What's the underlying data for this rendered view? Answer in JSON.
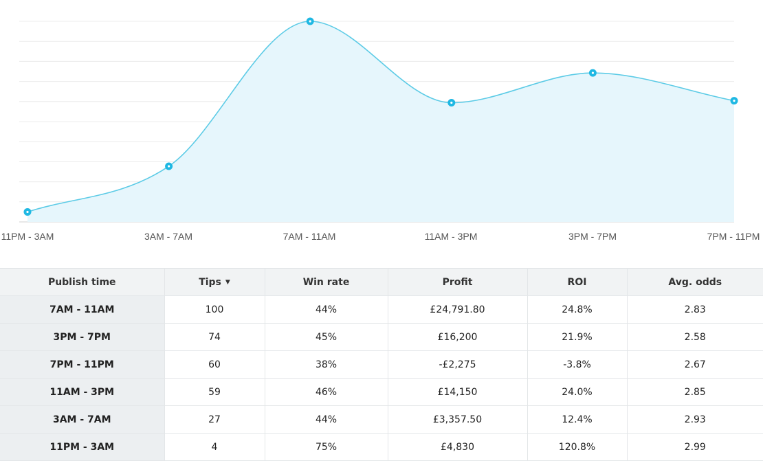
{
  "chart_data": {
    "type": "area",
    "categories": [
      "11PM - 3AM",
      "3AM - 7AM",
      "7AM - 11AM",
      "11AM - 3PM",
      "3PM - 7PM",
      "7PM - 11PM"
    ],
    "values": [
      4,
      27,
      100,
      59,
      74,
      60
    ],
    "ylim": [
      0,
      100
    ],
    "grid": true,
    "title": "",
    "xlabel": "",
    "ylabel": "",
    "colors": {
      "line": "#5ccbe6",
      "fill": "#e6f6fc",
      "point": "#1fb8e3"
    }
  },
  "table": {
    "columns": [
      {
        "key": "publish_time",
        "label": "Publish time"
      },
      {
        "key": "tips",
        "label": "Tips",
        "sort_icon": "sort-desc-icon",
        "sort_glyph": "▼"
      },
      {
        "key": "win_rate",
        "label": "Win rate"
      },
      {
        "key": "profit",
        "label": "Profit"
      },
      {
        "key": "roi",
        "label": "ROI"
      },
      {
        "key": "avg_odds",
        "label": "Avg. odds"
      }
    ],
    "rows": [
      {
        "publish_time": "7AM - 11AM",
        "tips": "100",
        "win_rate": "44%",
        "profit": "£24,791.80",
        "roi": "24.8%",
        "avg_odds": "2.83"
      },
      {
        "publish_time": "3PM - 7PM",
        "tips": "74",
        "win_rate": "45%",
        "profit": "£16,200",
        "roi": "21.9%",
        "avg_odds": "2.58"
      },
      {
        "publish_time": "7PM - 11PM",
        "tips": "60",
        "win_rate": "38%",
        "profit": "-£2,275",
        "roi": "-3.8%",
        "avg_odds": "2.67"
      },
      {
        "publish_time": "11AM - 3PM",
        "tips": "59",
        "win_rate": "46%",
        "profit": "£14,150",
        "roi": "24.0%",
        "avg_odds": "2.85"
      },
      {
        "publish_time": "3AM - 7AM",
        "tips": "27",
        "win_rate": "44%",
        "profit": "£3,357.50",
        "roi": "12.4%",
        "avg_odds": "2.93"
      },
      {
        "publish_time": "11PM - 3AM",
        "tips": "4",
        "win_rate": "75%",
        "profit": "£4,830",
        "roi": "120.8%",
        "avg_odds": "2.99"
      }
    ]
  }
}
